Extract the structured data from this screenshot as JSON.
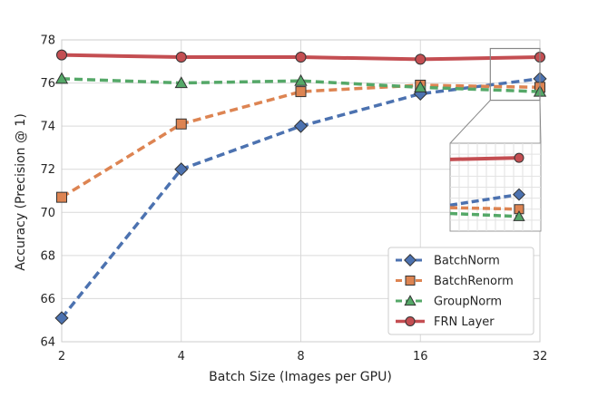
{
  "chart_data": {
    "type": "line",
    "title": "",
    "xlabel": "Batch Size (Images per GPU)",
    "ylabel": "Accuracy (Precision @ 1)",
    "x_scale": "log2",
    "x": [
      2,
      4,
      8,
      16,
      32
    ],
    "xticks": [
      "2",
      "4",
      "8",
      "16",
      "32"
    ],
    "ylim": [
      64,
      78
    ],
    "yticks": [
      "64",
      "66",
      "68",
      "70",
      "72",
      "74",
      "76",
      "78"
    ],
    "grid": true,
    "legend_position": "bottom-right",
    "series": [
      {
        "name": "BatchNorm",
        "values": [
          65.1,
          72.0,
          74.0,
          75.5,
          76.2
        ],
        "color": "#4c72b0",
        "marker": "diamond",
        "linestyle": "dashed"
      },
      {
        "name": "BatchRenorm",
        "values": [
          70.7,
          74.1,
          75.6,
          75.9,
          75.8
        ],
        "color": "#dd8452",
        "marker": "square",
        "linestyle": "dashed"
      },
      {
        "name": "GroupNorm",
        "values": [
          76.2,
          76.0,
          76.1,
          75.8,
          75.6
        ],
        "color": "#55a868",
        "marker": "triangle",
        "linestyle": "dashed"
      },
      {
        "name": "FRN Layer",
        "values": [
          77.3,
          77.2,
          77.2,
          77.1,
          77.2
        ],
        "color": "#c44e52",
        "marker": "circle",
        "linestyle": "solid"
      }
    ],
    "inset": {
      "description_type": "zoom",
      "x_range": [
        24,
        32
      ],
      "y_range": [
        75.2,
        77.6
      ]
    }
  }
}
